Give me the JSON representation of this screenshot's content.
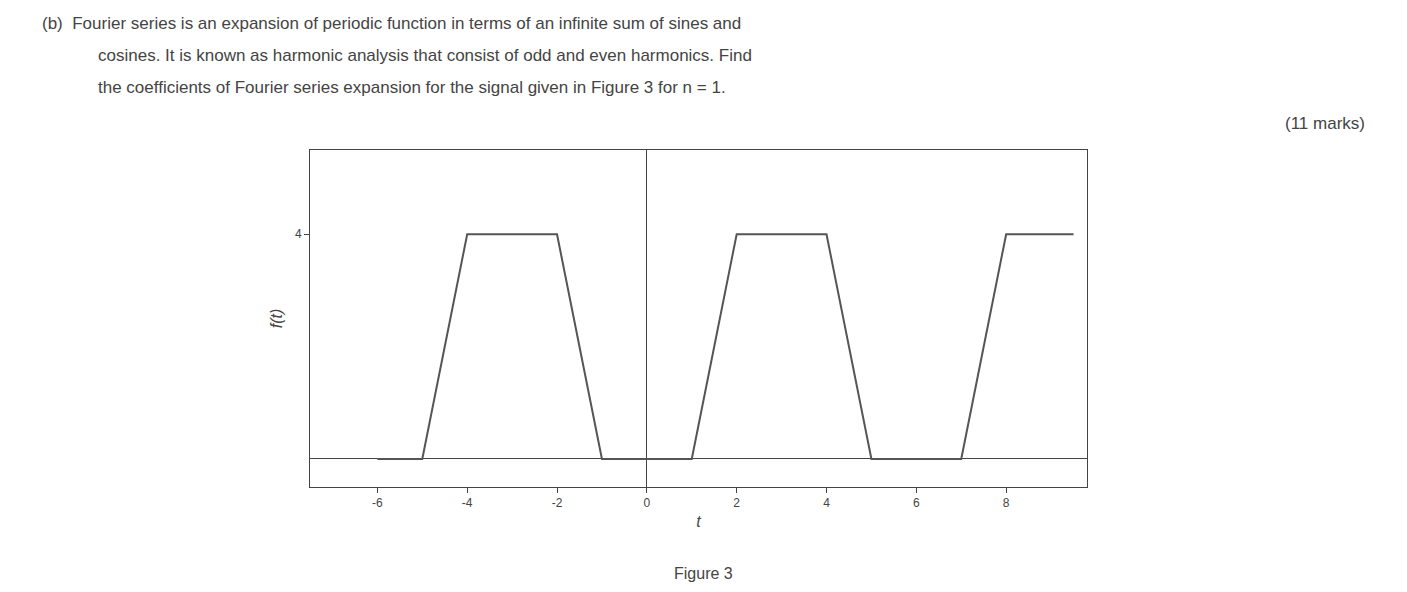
{
  "chart_data": {
    "type": "line",
    "annotations": [
      "(b)  Fourier series is an expansion of periodic function in terms of an infinite sum of sines and",
      "cosines. It is known as harmonic analysis that consist of odd and even harmonics. Find",
      "the coefficients of Fourier series expansion for the signal given in Figure 3 for n = 1.",
      "(11 marks)",
      "Figure 3"
    ],
    "x_label": "t",
    "y_label": "f(t)",
    "x": [
      -6.0,
      -5.0,
      -4.0,
      -2.0,
      -1.0,
      1.0,
      2.0,
      4.0,
      5.0,
      7.0,
      8.0,
      9.5
    ],
    "values": [
      0.0,
      0.0,
      4.0,
      4.0,
      0.0,
      0.0,
      4.0,
      4.0,
      0.0,
      0.0,
      4.0,
      4.0
    ],
    "color": "#555555",
    "xlim": [
      -7.5,
      9.8
    ],
    "xticks": [
      -6,
      -4,
      -2,
      0,
      2,
      4,
      6,
      8
    ],
    "ylim": [
      -0.5,
      5.5
    ],
    "yticks": [
      4
    ],
    "grid": false
  }
}
